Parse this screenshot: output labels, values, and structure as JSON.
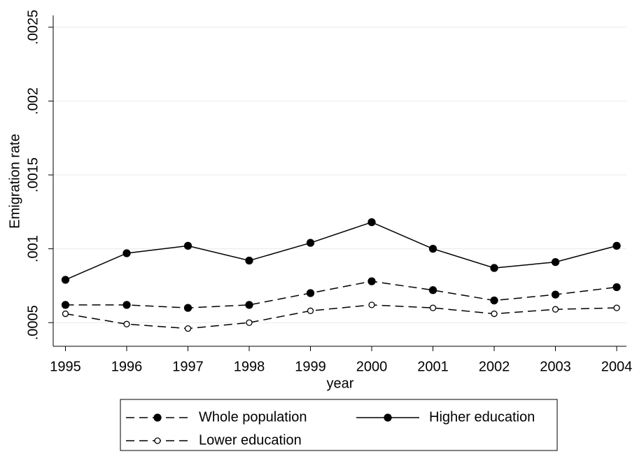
{
  "chart_data": {
    "type": "line",
    "y_label": "Emigration rate",
    "x_label": "year",
    "x": [
      1995,
      1996,
      1997,
      1998,
      1999,
      2000,
      2001,
      2002,
      2003,
      2004
    ],
    "xlim": [
      1994.8,
      2004.16
    ],
    "xticks": [
      1995,
      1996,
      1997,
      1998,
      1999,
      2000,
      2001,
      2002,
      2003,
      2004
    ],
    "ylim": [
      0.00034,
      0.00258
    ],
    "yticks": [
      {
        "value": 0.0005,
        "label": ".0005"
      },
      {
        "value": 0.001,
        "label": ".001"
      },
      {
        "value": 0.0015,
        "label": ".0015"
      },
      {
        "value": 0.002,
        "label": ".002"
      },
      {
        "value": 0.0025,
        "label": ".0025"
      }
    ],
    "grid": true,
    "legend_position": "bottom",
    "series": [
      {
        "name": "Whole population",
        "color": "#000000",
        "line_style": "dashed",
        "marker": "filled",
        "values": [
          0.00062,
          0.00062,
          0.0006,
          0.00062,
          0.0007,
          0.00078,
          0.00072,
          0.00065,
          0.00069,
          0.00074
        ]
      },
      {
        "name": "Higher education",
        "color": "#000000",
        "line_style": "solid",
        "marker": "filled",
        "values": [
          0.00079,
          0.00097,
          0.00102,
          0.00092,
          0.00104,
          0.00118,
          0.001,
          0.00087,
          0.00091,
          0.00102
        ]
      },
      {
        "name": "Lower education",
        "color": "#000000",
        "line_style": "dashed",
        "marker": "hollow",
        "values": [
          0.00056,
          0.00049,
          0.00046,
          0.0005,
          0.00058,
          0.00062,
          0.0006,
          0.00056,
          0.00059,
          0.0006
        ]
      }
    ]
  }
}
